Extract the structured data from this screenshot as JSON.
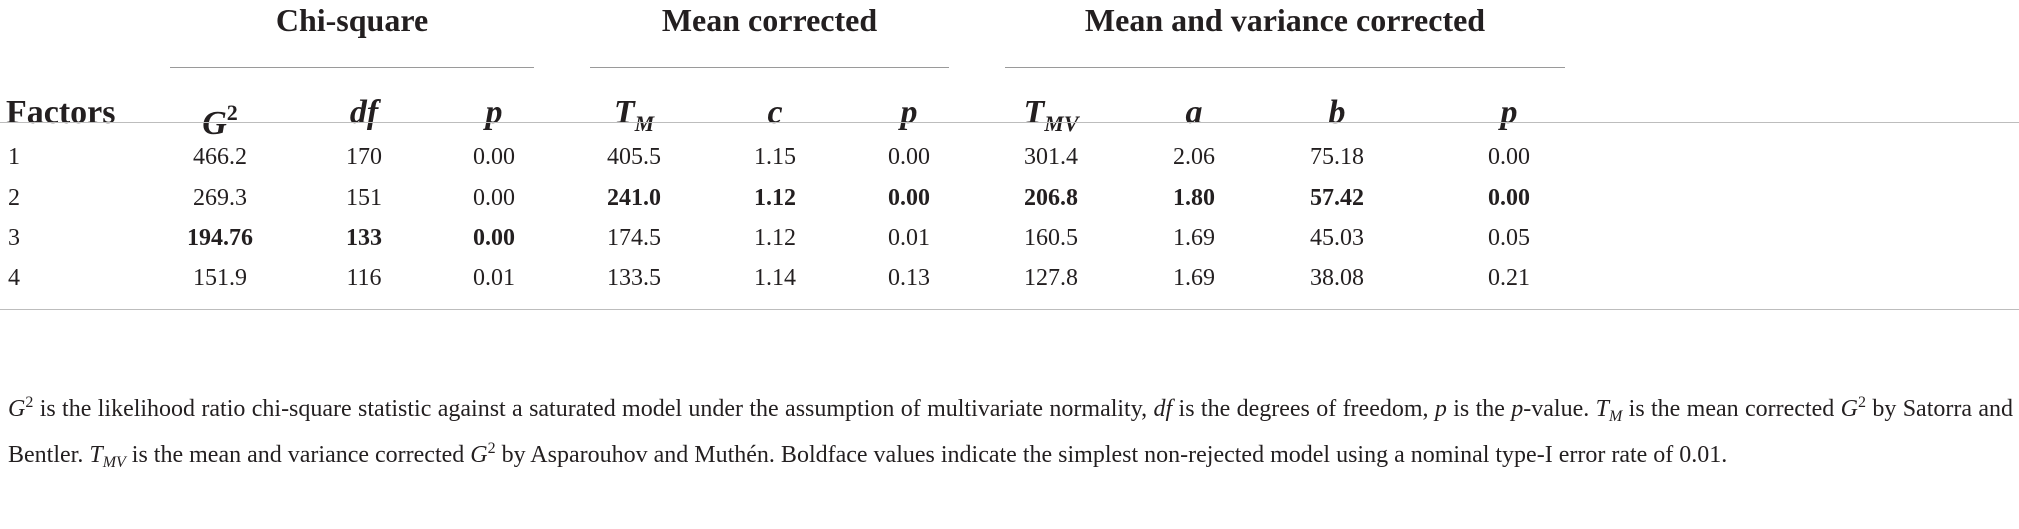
{
  "groups": {
    "chi_square": "Chi-square",
    "mean_corrected": "Mean corrected",
    "mean_variance_corrected": "Mean and variance corrected"
  },
  "headers": {
    "factors": "Factors",
    "g2": "G",
    "g2_sup": "2",
    "df": "df",
    "p1": "p",
    "tm": "T",
    "tm_sub": "M",
    "c": "c",
    "p2": "p",
    "tmv": "T",
    "tmv_sub": "MV",
    "a": "a",
    "b": "b",
    "p3": "p"
  },
  "rows": [
    {
      "factor": "1",
      "g2": "466.2",
      "df": "170",
      "p1": "0.00",
      "tm": "405.5",
      "c": "1.15",
      "p2": "0.00",
      "tmv": "301.4",
      "a": "2.06",
      "b": "75.18",
      "p3": "0.00"
    },
    {
      "factor": "2",
      "g2": "269.3",
      "df": "151",
      "p1": "0.00",
      "tm": "241.0",
      "c": "1.12",
      "p2": "0.00",
      "tmv": "206.8",
      "a": "1.80",
      "b": "57.42",
      "p3": "0.00"
    },
    {
      "factor": "3",
      "g2": "194.76",
      "df": "133",
      "p1": "0.00",
      "tm": "174.5",
      "c": "1.12",
      "p2": "0.01",
      "tmv": "160.5",
      "a": "1.69",
      "b": "45.03",
      "p3": "0.05"
    },
    {
      "factor": "4",
      "g2": "151.9",
      "df": "116",
      "p1": "0.01",
      "tm": "133.5",
      "c": "1.14",
      "p2": "0.13",
      "tmv": "127.8",
      "a": "1.69",
      "b": "38.08",
      "p3": "0.21"
    }
  ],
  "footnote": {
    "s1": "G",
    "s2": "2",
    "s3": " is the likelihood ratio chi-square statistic against a saturated model under the assumption of multivariate normality, ",
    "s4": "df",
    "s5": " is the degrees of freedom, ",
    "s6": "p",
    "s7": " is the ",
    "s8": "p",
    "s9": "-value. ",
    "s10": "T",
    "s11": "M",
    "s12": " is the mean corrected ",
    "s13": "G",
    "s14": "2",
    "s15": " by Satorra and Bentler. ",
    "s16": "T",
    "s17": "MV",
    "s18": " is the mean and variance corrected ",
    "s19": "G",
    "s20": "2",
    "s21": " by Asparouhov and Muthén. Boldface values indicate the simplest non-rejected model using a nominal type-I error rate of 0.01."
  }
}
